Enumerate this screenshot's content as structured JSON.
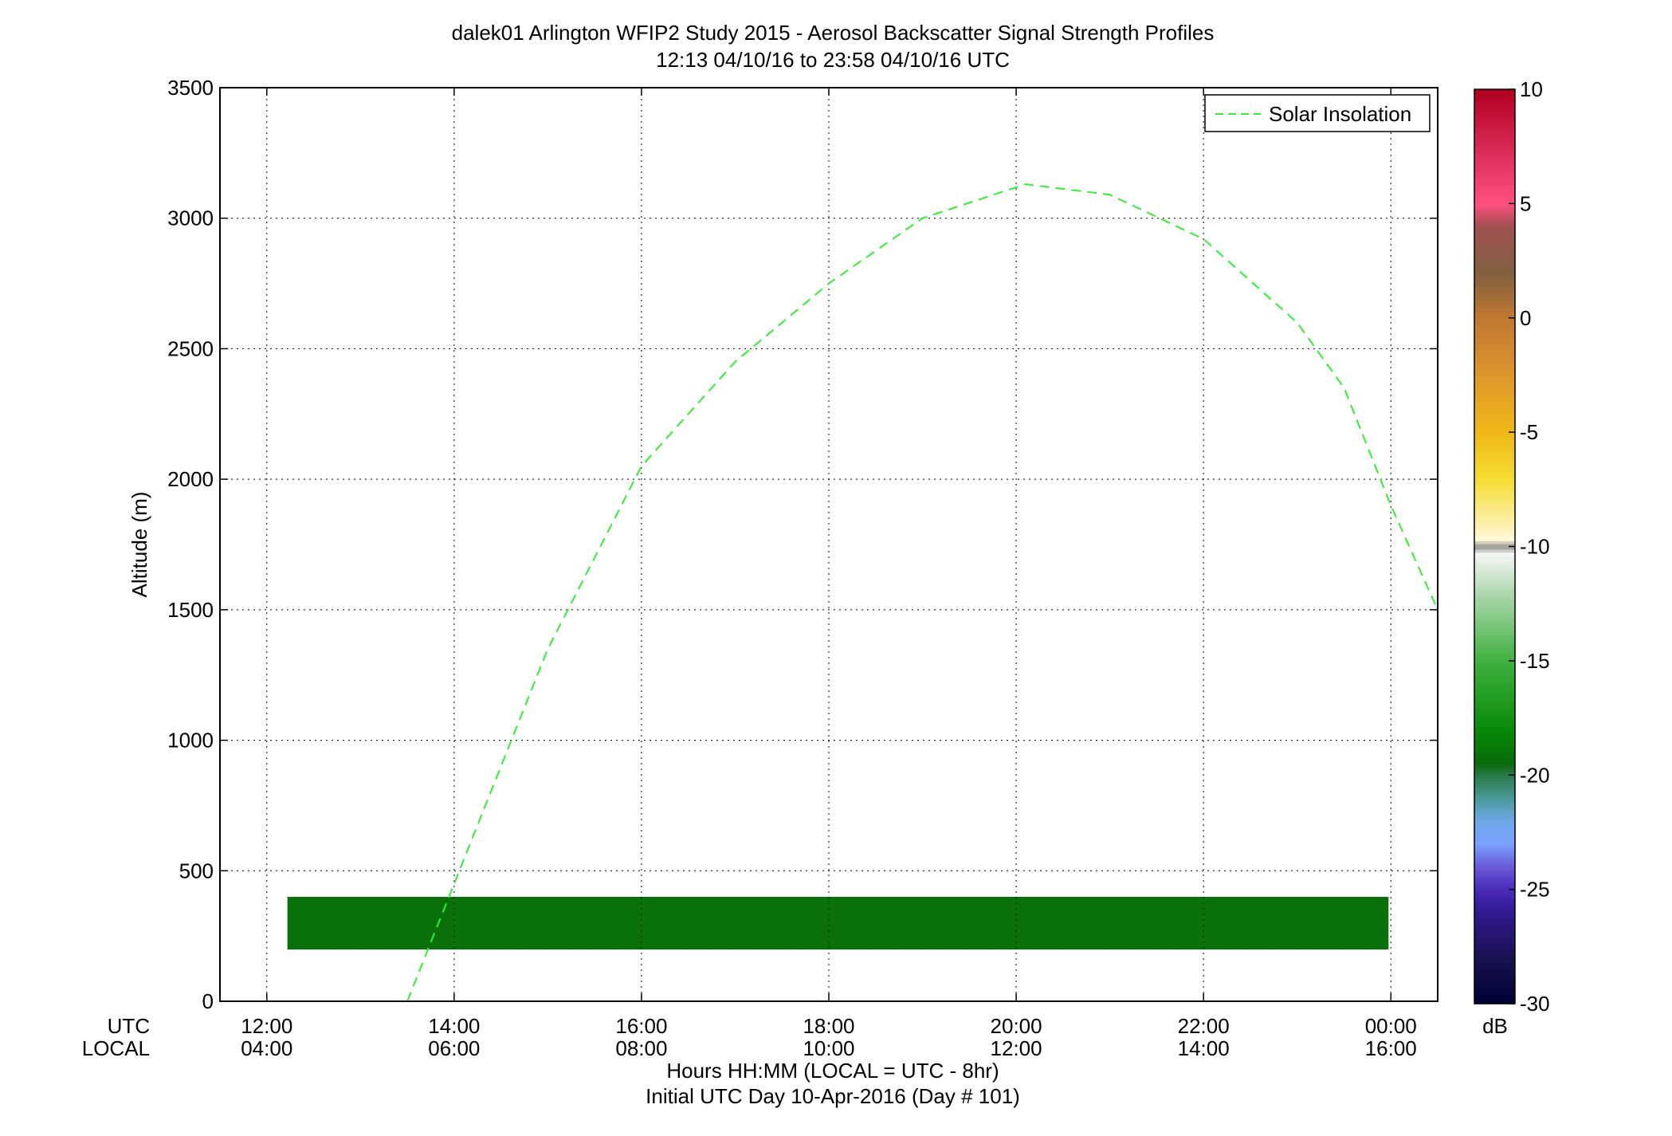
{
  "chart_data": {
    "type": "heatmap",
    "title": "dalek01 Arlington WFIP2 Study 2015 - Aerosol Backscatter Signal Strength Profiles",
    "subtitle": "12:13 04/10/16 to 23:58 04/10/16  UTC",
    "xlabel": "Hours HH:MM  (LOCAL = UTC - 8hr)",
    "xlabel2": "Initial UTC Day 10-Apr-2016 (Day # 101)",
    "ylabel": "Altitude (m)",
    "x_row_labels": [
      "UTC",
      "LOCAL"
    ],
    "xlim_hours": [
      11.5,
      24.5
    ],
    "ylim": [
      0,
      3500
    ],
    "grid": true,
    "x_ticks": [
      {
        "hour": 12,
        "utc": "12:00",
        "local": "04:00"
      },
      {
        "hour": 14,
        "utc": "14:00",
        "local": "06:00"
      },
      {
        "hour": 16,
        "utc": "16:00",
        "local": "08:00"
      },
      {
        "hour": 18,
        "utc": "18:00",
        "local": "10:00"
      },
      {
        "hour": 20,
        "utc": "20:00",
        "local": "12:00"
      },
      {
        "hour": 22,
        "utc": "22:00",
        "local": "14:00"
      },
      {
        "hour": 24,
        "utc": "00:00",
        "local": "16:00"
      }
    ],
    "y_ticks": [
      {
        "value": 0,
        "label": "0"
      },
      {
        "value": 500,
        "label": "500"
      },
      {
        "value": 1000,
        "label": "1000"
      },
      {
        "value": 1500,
        "label": "1500"
      },
      {
        "value": 2000,
        "label": "2000"
      },
      {
        "value": 2500,
        "label": "2500"
      },
      {
        "value": 3000,
        "label": "3000"
      },
      {
        "value": 3500,
        "label": "3500"
      }
    ],
    "time_start_hour": 12.22,
    "time_step_hours": 0.25,
    "alt_start_m": 200,
    "alt_step_m": 100,
    "legend": {
      "entry": "Solar Insolation",
      "color": "#33ee33",
      "style": "dashed",
      "placement": "top-right"
    },
    "solar_insolation_curve": [
      {
        "hour": 13.5,
        "alt": 0
      },
      {
        "hour": 14.0,
        "alt": 450
      },
      {
        "hour": 15.0,
        "alt": 1350
      },
      {
        "hour": 16.0,
        "alt": 2050
      },
      {
        "hour": 17.0,
        "alt": 2450
      },
      {
        "hour": 18.0,
        "alt": 2750
      },
      {
        "hour": 19.0,
        "alt": 3000
      },
      {
        "hour": 20.1,
        "alt": 3130
      },
      {
        "hour": 21.0,
        "alt": 3090
      },
      {
        "hour": 22.0,
        "alt": 2920
      },
      {
        "hour": 23.0,
        "alt": 2600
      },
      {
        "hour": 23.5,
        "alt": 2350
      },
      {
        "hour": 24.0,
        "alt": 1900
      },
      {
        "hour": 24.5,
        "alt": 1500
      }
    ],
    "colorbar": {
      "unit": "dB",
      "min": -30,
      "max": 10,
      "ticks": [
        {
          "value": -30,
          "label": "-30"
        },
        {
          "value": -25,
          "label": "-25"
        },
        {
          "value": -20,
          "label": "-20"
        },
        {
          "value": -15,
          "label": "-15"
        },
        {
          "value": -10,
          "label": "-10"
        },
        {
          "value": -5,
          "label": "-5"
        },
        {
          "value": 0,
          "label": "0"
        },
        {
          "value": 5,
          "label": "5"
        },
        {
          "value": 10,
          "label": "10"
        }
      ],
      "stops": [
        {
          "value": -30,
          "color": "#000033"
        },
        {
          "value": -28,
          "color": "#1a1050"
        },
        {
          "value": -26,
          "color": "#301a90"
        },
        {
          "value": -25,
          "color": "#4a2ab8"
        },
        {
          "value": -24,
          "color": "#6a5ad8"
        },
        {
          "value": -23,
          "color": "#7aa0ff"
        },
        {
          "value": -22,
          "color": "#6ea8e8"
        },
        {
          "value": -21,
          "color": "#4a9a98"
        },
        {
          "value": -20,
          "color": "#2a7a4a"
        },
        {
          "value": -19.5,
          "color": "#0a6a0a"
        },
        {
          "value": -18,
          "color": "#088a08"
        },
        {
          "value": -15,
          "color": "#40b040"
        },
        {
          "value": -12,
          "color": "#b0d8b0"
        },
        {
          "value": -10.3,
          "color": "#f4f4f4"
        },
        {
          "value": -10,
          "color": "#909090"
        },
        {
          "value": -9.7,
          "color": "#fff8d8"
        },
        {
          "value": -7,
          "color": "#f4dc30"
        },
        {
          "value": -5,
          "color": "#f0b818"
        },
        {
          "value": -2,
          "color": "#d89030"
        },
        {
          "value": 0,
          "color": "#c07830"
        },
        {
          "value": 2,
          "color": "#806040"
        },
        {
          "value": 4,
          "color": "#a05050"
        },
        {
          "value": 5,
          "color": "#ff5080"
        },
        {
          "value": 7,
          "color": "#e03060"
        },
        {
          "value": 10,
          "color": "#b00020"
        }
      ]
    },
    "profiles_db": [
      [
        -19.2,
        -19.2,
        -19.2,
        -19.2,
        -19.2,
        -19.2,
        -19.2,
        -19.2,
        -19.2,
        -19.2,
        -19.2,
        -19.2,
        -19.2,
        -19.2,
        -19.2,
        -19.2,
        -19.2,
        -19.2,
        -19.2,
        -19.2,
        -19.2,
        -19.2,
        -19.2,
        -19.2,
        -19.2,
        -19.2,
        -19.2,
        -19.2,
        -19.2,
        -19.2,
        -19.2,
        -19.2,
        -19.2,
        -19.2,
        -19.2,
        -19.2,
        -19.2,
        -19.2,
        -19.2,
        -19.2,
        -19.2,
        -19.2,
        -19.2,
        -19.2,
        -19.2,
        -19.2,
        -19.2
      ],
      [
        -19.2,
        -19.2,
        -19.2,
        -19.2,
        -19.2,
        -19.2,
        -19.2,
        -19.2,
        -19.2,
        -19.2,
        -19.2,
        -19.2,
        -19.2,
        -19.2,
        -19.2,
        -19.2,
        -19.2,
        -19.2,
        -19.2,
        -19.2,
        -19.2,
        -19.2,
        -19.2,
        -19.2,
        -19.2,
        -19.2,
        -19.2,
        -19.2,
        -19.2,
        -19.2,
        -19.2,
        -19.2,
        -19.2,
        -19.2,
        -19.2,
        -19.2,
        -19.2,
        -19.2,
        -19.2,
        -19.2,
        -19.2,
        -19.2,
        -19.2,
        -19.2,
        -19.2,
        -19.2,
        -19.2
      ]
    ]
  }
}
